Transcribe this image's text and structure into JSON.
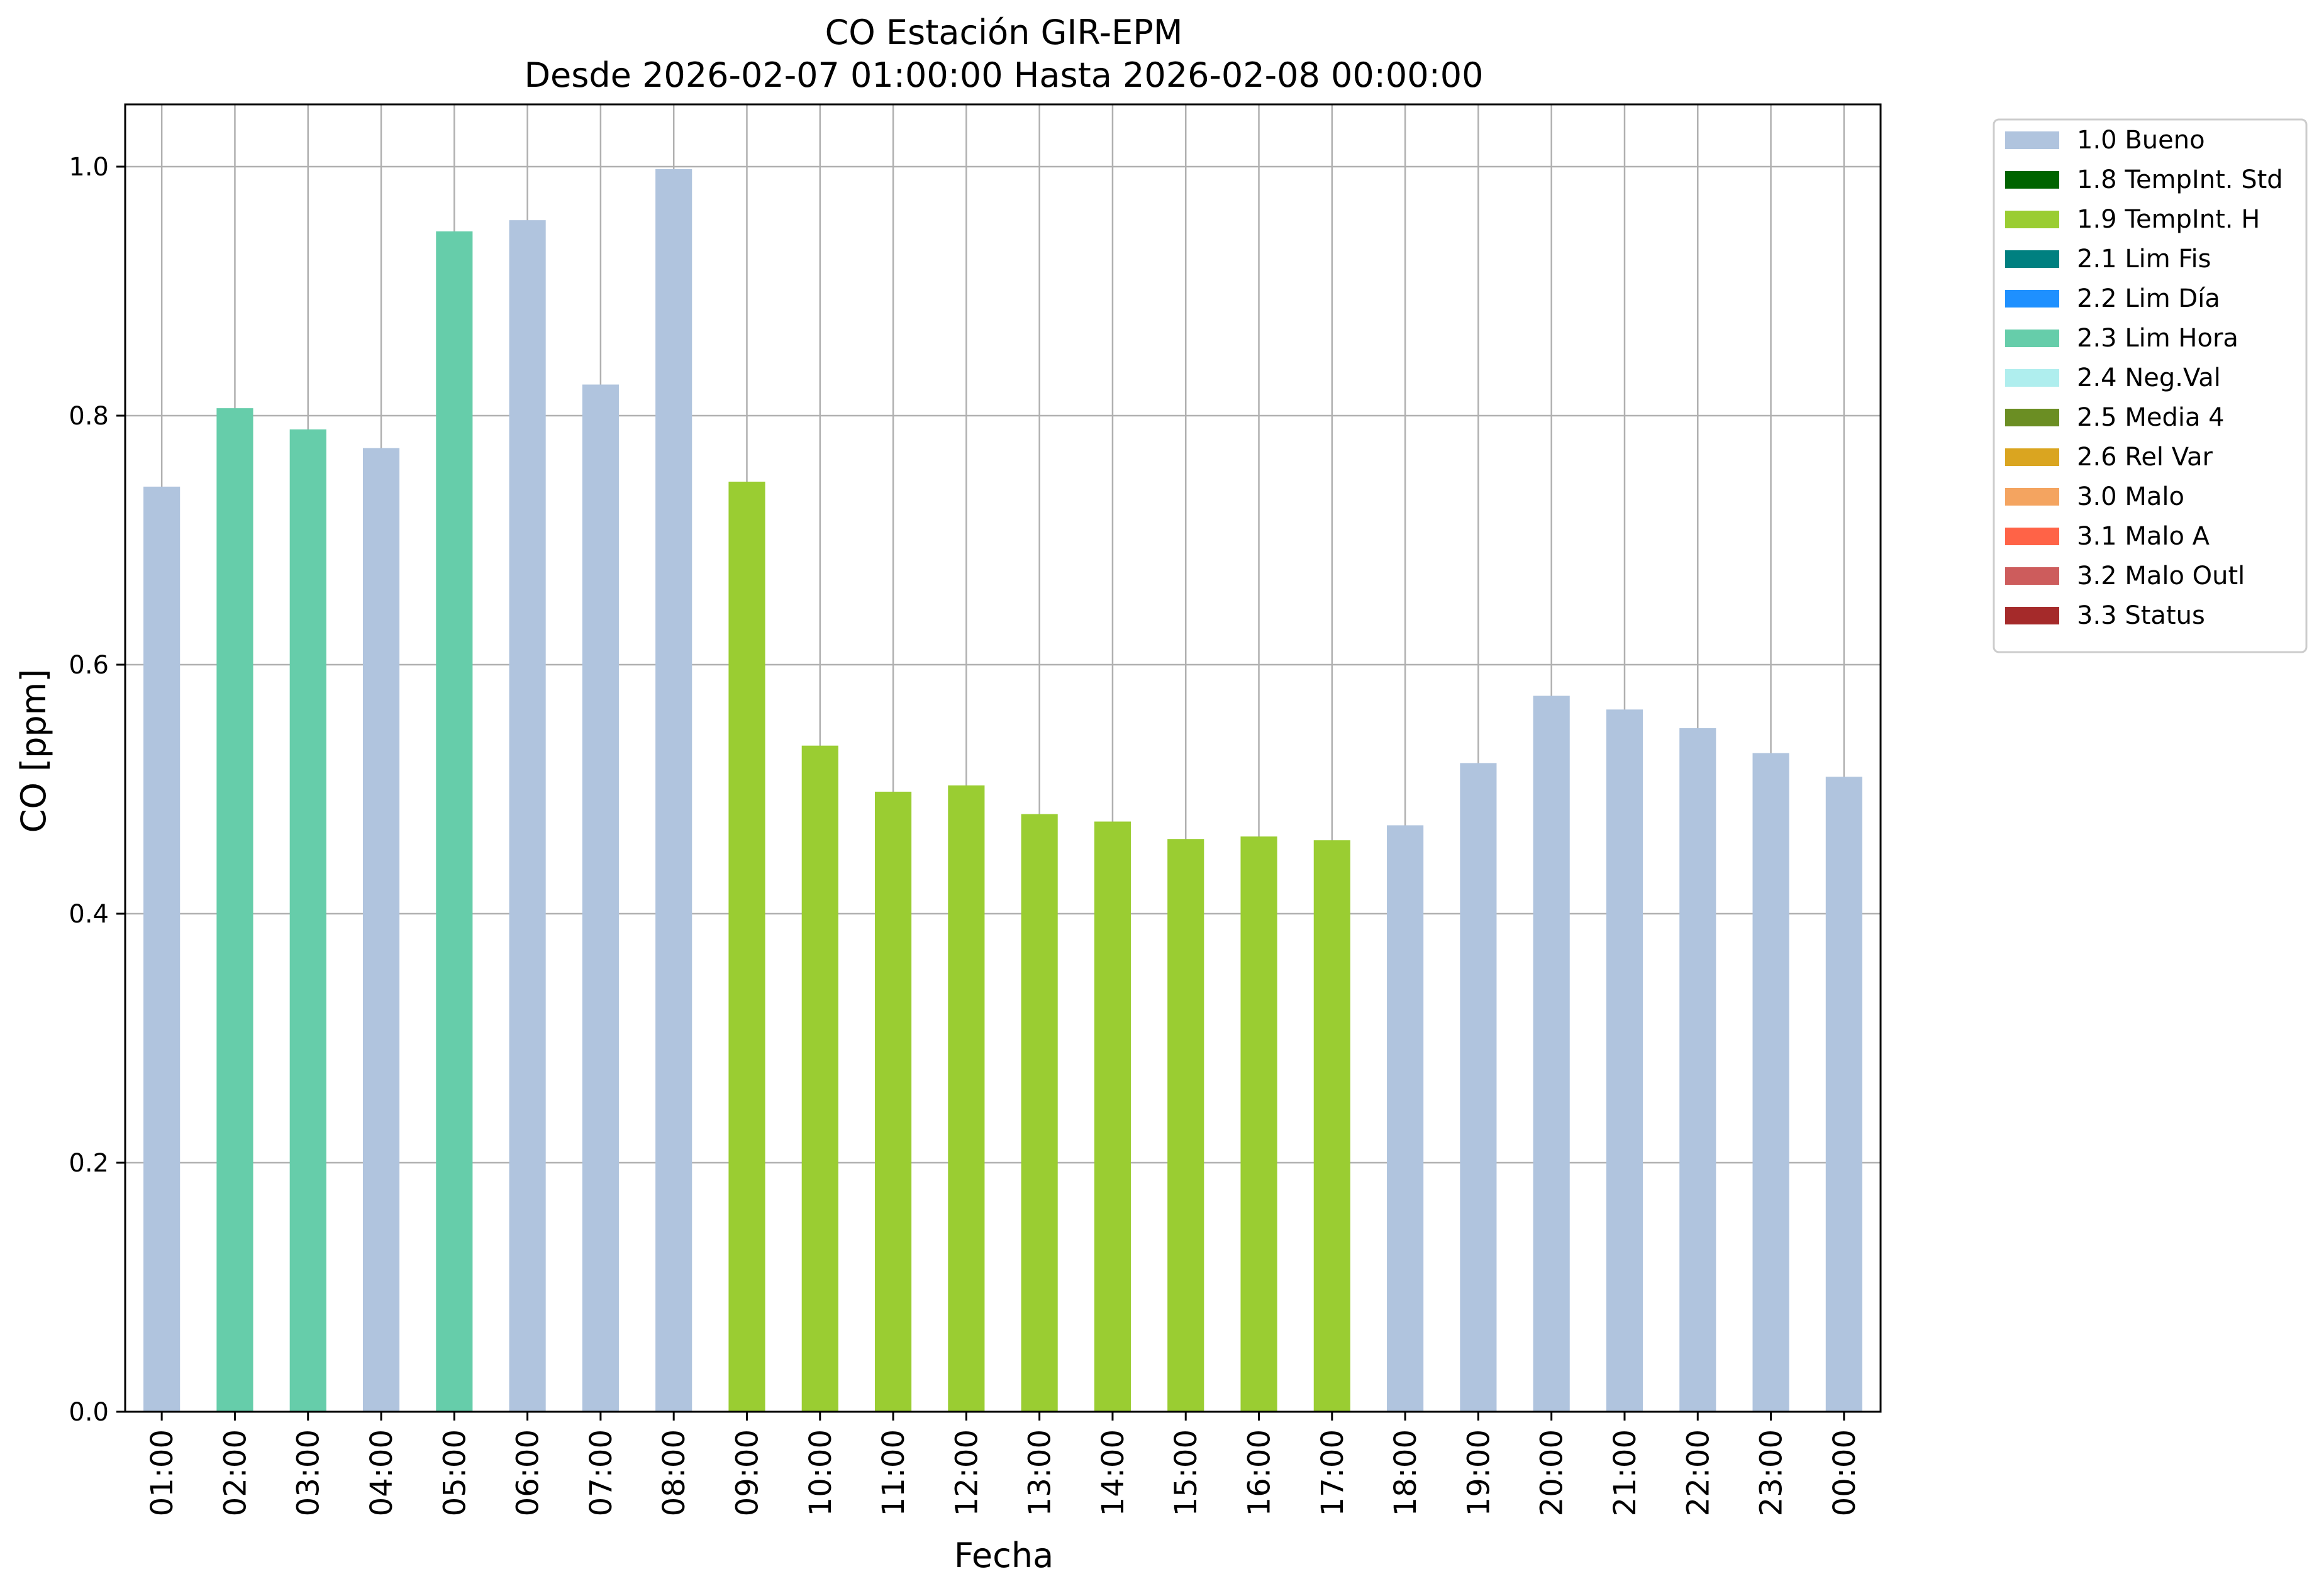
{
  "chart_data": {
    "type": "bar",
    "title": "CO Estación GIR-EPM",
    "subtitle": "Desde 2026-02-07 01:00:00 Hasta 2026-02-08 00:00:00",
    "xlabel": "Fecha",
    "ylabel": "CO [ppm]",
    "ylim": [
      0,
      1.05
    ],
    "yticks": [
      "0.0",
      "0.2",
      "0.4",
      "0.6",
      "0.8",
      "1.0"
    ],
    "grid": true,
    "legend_position": "outside-right-top",
    "categories": [
      "01:00",
      "02:00",
      "03:00",
      "04:00",
      "05:00",
      "06:00",
      "07:00",
      "08:00",
      "09:00",
      "10:00",
      "11:00",
      "12:00",
      "13:00",
      "14:00",
      "15:00",
      "16:00",
      "17:00",
      "18:00",
      "19:00",
      "20:00",
      "21:00",
      "22:00",
      "23:00",
      "00:00"
    ],
    "values": [
      0.743,
      0.806,
      0.789,
      0.774,
      0.948,
      0.957,
      0.825,
      0.998,
      0.747,
      0.535,
      0.498,
      0.503,
      0.48,
      0.474,
      0.46,
      0.462,
      0.459,
      0.471,
      0.521,
      0.575,
      0.564,
      0.549,
      0.529,
      0.51
    ],
    "flags": [
      "1.0 Bueno",
      "2.3 Lim Hora",
      "2.3 Lim Hora",
      "1.0 Bueno",
      "2.3 Lim Hora",
      "1.0 Bueno",
      "1.0 Bueno",
      "1.0 Bueno",
      "1.9 TempInt. H",
      "1.9 TempInt. H",
      "1.9 TempInt. H",
      "1.9 TempInt. H",
      "1.9 TempInt. H",
      "1.9 TempInt. H",
      "1.9 TempInt. H",
      "1.9 TempInt. H",
      "1.9 TempInt. H",
      "1.0 Bueno",
      "1.0 Bueno",
      "1.0 Bueno",
      "1.0 Bueno",
      "1.0 Bueno",
      "1.0 Bueno",
      "1.0 Bueno"
    ],
    "legend": [
      {
        "label": "1.0 Bueno",
        "color": "#b0c4de"
      },
      {
        "label": "1.8 TempInt. Std",
        "color": "#006400"
      },
      {
        "label": "1.9 TempInt. H",
        "color": "#9acd32"
      },
      {
        "label": "2.1 Lim Fis",
        "color": "#008080"
      },
      {
        "label": "2.2 Lim Día",
        "color": "#1e90ff"
      },
      {
        "label": "2.3 Lim Hora",
        "color": "#66cdaa"
      },
      {
        "label": "2.4 Neg.Val",
        "color": "#afeeee"
      },
      {
        "label": "2.5 Media 4",
        "color": "#6b8e23"
      },
      {
        "label": "2.6 Rel Var",
        "color": "#daa520"
      },
      {
        "label": "3.0 Malo",
        "color": "#f4a460"
      },
      {
        "label": "3.1 Malo A",
        "color": "#ff6347"
      },
      {
        "label": "3.2 Malo Outl",
        "color": "#cd5c5c"
      },
      {
        "label": "3.3 Status",
        "color": "#a52a2a"
      }
    ]
  }
}
